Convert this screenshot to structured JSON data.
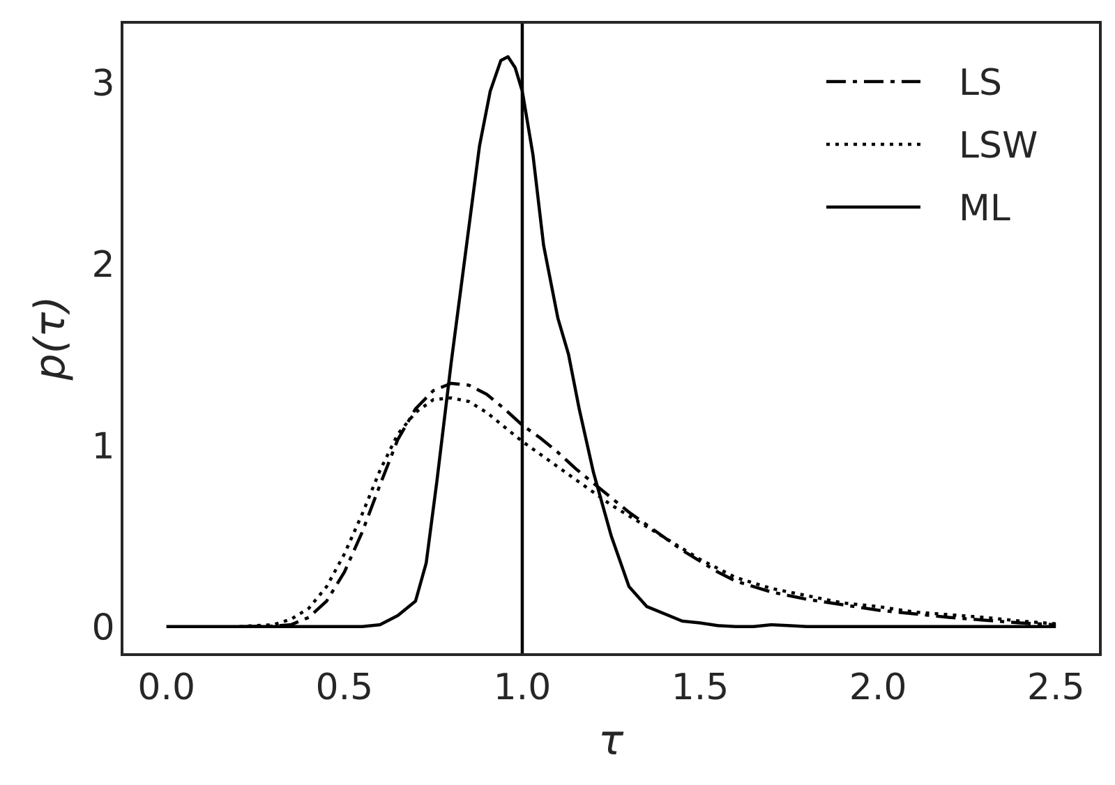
{
  "chart_data": {
    "type": "line",
    "title": "",
    "xlabel": "τ",
    "ylabel": "p(τ)",
    "xlim": [
      -0.125,
      2.625
    ],
    "ylim": [
      -0.155,
      3.33
    ],
    "xticks": [
      0.0,
      0.5,
      1.0,
      1.5,
      2.0,
      2.5
    ],
    "xtick_labels": [
      "0.0",
      "0.5",
      "1.0",
      "1.5",
      "2.0",
      "2.5"
    ],
    "yticks": [
      0,
      1,
      2,
      3
    ],
    "ytick_labels": [
      "0",
      "1",
      "2",
      "3"
    ],
    "grid": false,
    "legend_position": "top-right",
    "reference_lines": [
      {
        "axis": "x",
        "value": 1.0
      }
    ],
    "series": [
      {
        "name": "LS",
        "style": "dashdot",
        "color": "#000000",
        "points": [
          [
            0.0,
            0.0
          ],
          [
            0.2,
            0.0
          ],
          [
            0.3,
            0.002
          ],
          [
            0.35,
            0.01
          ],
          [
            0.4,
            0.05
          ],
          [
            0.45,
            0.14
          ],
          [
            0.5,
            0.3
          ],
          [
            0.55,
            0.52
          ],
          [
            0.6,
            0.78
          ],
          [
            0.65,
            1.03
          ],
          [
            0.7,
            1.2
          ],
          [
            0.75,
            1.3
          ],
          [
            0.8,
            1.34
          ],
          [
            0.85,
            1.33
          ],
          [
            0.9,
            1.28
          ],
          [
            0.95,
            1.2
          ],
          [
            1.0,
            1.11
          ],
          [
            1.05,
            1.04
          ],
          [
            1.1,
            0.96
          ],
          [
            1.15,
            0.87
          ],
          [
            1.2,
            0.79
          ],
          [
            1.25,
            0.71
          ],
          [
            1.3,
            0.63
          ],
          [
            1.35,
            0.56
          ],
          [
            1.4,
            0.49
          ],
          [
            1.45,
            0.42
          ],
          [
            1.5,
            0.36
          ],
          [
            1.55,
            0.3
          ],
          [
            1.6,
            0.25
          ],
          [
            1.7,
            0.19
          ],
          [
            1.8,
            0.15
          ],
          [
            1.9,
            0.12
          ],
          [
            2.0,
            0.09
          ],
          [
            2.1,
            0.07
          ],
          [
            2.2,
            0.05
          ],
          [
            2.3,
            0.035
          ],
          [
            2.4,
            0.02
          ],
          [
            2.5,
            0.01
          ]
        ]
      },
      {
        "name": "LSW",
        "style": "dotted",
        "color": "#000000",
        "points": [
          [
            0.0,
            0.0
          ],
          [
            0.2,
            0.0
          ],
          [
            0.3,
            0.01
          ],
          [
            0.35,
            0.04
          ],
          [
            0.4,
            0.1
          ],
          [
            0.45,
            0.22
          ],
          [
            0.5,
            0.4
          ],
          [
            0.55,
            0.62
          ],
          [
            0.6,
            0.86
          ],
          [
            0.65,
            1.06
          ],
          [
            0.7,
            1.18
          ],
          [
            0.75,
            1.25
          ],
          [
            0.8,
            1.26
          ],
          [
            0.85,
            1.24
          ],
          [
            0.9,
            1.18
          ],
          [
            0.95,
            1.1
          ],
          [
            1.0,
            1.02
          ],
          [
            1.05,
            0.95
          ],
          [
            1.1,
            0.88
          ],
          [
            1.15,
            0.81
          ],
          [
            1.2,
            0.74
          ],
          [
            1.25,
            0.67
          ],
          [
            1.3,
            0.61
          ],
          [
            1.35,
            0.55
          ],
          [
            1.4,
            0.49
          ],
          [
            1.45,
            0.43
          ],
          [
            1.5,
            0.37
          ],
          [
            1.55,
            0.32
          ],
          [
            1.6,
            0.27
          ],
          [
            1.7,
            0.21
          ],
          [
            1.8,
            0.17
          ],
          [
            1.9,
            0.13
          ],
          [
            2.0,
            0.11
          ],
          [
            2.1,
            0.08
          ],
          [
            2.2,
            0.065
          ],
          [
            2.3,
            0.05
          ],
          [
            2.4,
            0.03
          ],
          [
            2.5,
            0.015
          ]
        ]
      },
      {
        "name": "ML",
        "style": "solid",
        "color": "#000000",
        "points": [
          [
            0.0,
            0.0
          ],
          [
            0.55,
            0.0
          ],
          [
            0.6,
            0.01
          ],
          [
            0.65,
            0.06
          ],
          [
            0.7,
            0.14
          ],
          [
            0.73,
            0.35
          ],
          [
            0.76,
            0.8
          ],
          [
            0.8,
            1.45
          ],
          [
            0.85,
            2.2
          ],
          [
            0.88,
            2.65
          ],
          [
            0.91,
            2.95
          ],
          [
            0.94,
            3.12
          ],
          [
            0.96,
            3.14
          ],
          [
            0.98,
            3.08
          ],
          [
            1.0,
            2.95
          ],
          [
            1.03,
            2.6
          ],
          [
            1.06,
            2.1
          ],
          [
            1.1,
            1.7
          ],
          [
            1.13,
            1.5
          ],
          [
            1.16,
            1.2
          ],
          [
            1.2,
            0.85
          ],
          [
            1.25,
            0.5
          ],
          [
            1.3,
            0.22
          ],
          [
            1.35,
            0.11
          ],
          [
            1.4,
            0.07
          ],
          [
            1.45,
            0.03
          ],
          [
            1.5,
            0.02
          ],
          [
            1.55,
            0.005
          ],
          [
            1.6,
            0.0
          ],
          [
            1.65,
            0.0
          ],
          [
            1.7,
            0.01
          ],
          [
            1.75,
            0.005
          ],
          [
            1.8,
            0.0
          ],
          [
            2.5,
            0.0
          ]
        ]
      }
    ]
  }
}
